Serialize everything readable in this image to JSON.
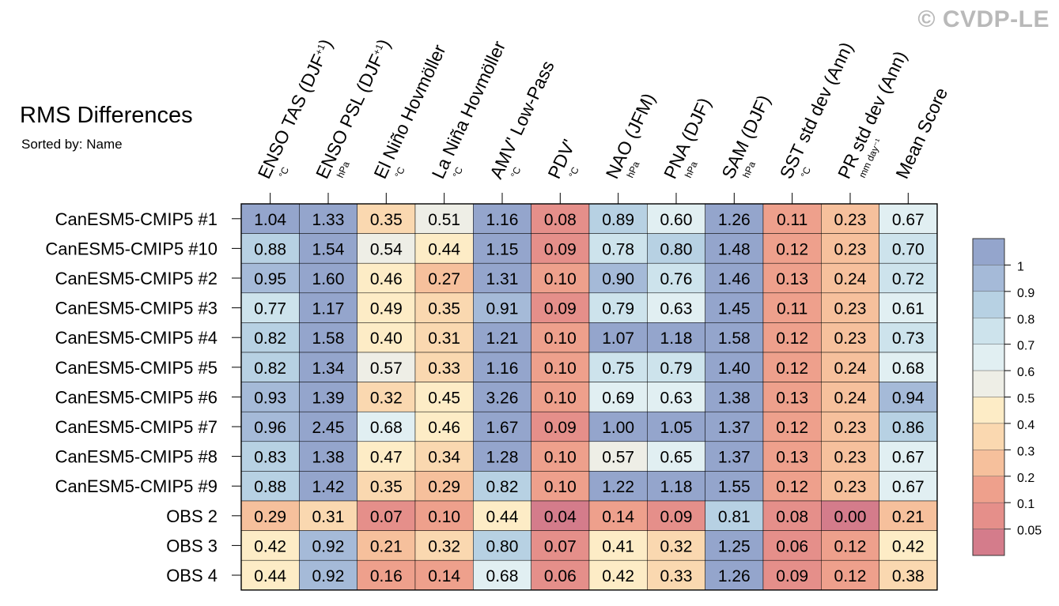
{
  "watermark": "© CVDP-LE",
  "title": "RMS Differences",
  "subtitle": "Sorted by: Name",
  "chart_data": {
    "type": "heatmap",
    "title": "RMS Differences",
    "subtitle": "Sorted by: Name",
    "columns": [
      {
        "label": "ENSO TAS (DJF",
        "sup": "+1",
        "close": ")",
        "unit": "°C"
      },
      {
        "label": "ENSO PSL (DJF",
        "sup": "+1",
        "close": ")",
        "unit": "hPa"
      },
      {
        "label": "El Niño Hovmöller",
        "sup": "",
        "close": "",
        "unit": "°C"
      },
      {
        "label": "La Niña Hovmöller",
        "sup": "",
        "close": "",
        "unit": "°C"
      },
      {
        "label": "AMV' Low-Pass",
        "sup": "",
        "close": "",
        "unit": "°C"
      },
      {
        "label": "PDV'",
        "sup": "",
        "close": "",
        "unit": "°C"
      },
      {
        "label": "NAO (JFM)",
        "sup": "",
        "close": "",
        "unit": "hPa"
      },
      {
        "label": "PNA (DJF)",
        "sup": "",
        "close": "",
        "unit": "hPa"
      },
      {
        "label": "SAM (DJF)",
        "sup": "",
        "close": "",
        "unit": "hPa"
      },
      {
        "label": "SST std dev (Ann)",
        "sup": "",
        "close": "",
        "unit": "°C"
      },
      {
        "label": "PR std dev (Ann)",
        "sup": "",
        "close": "",
        "unit": "mm day⁻¹"
      },
      {
        "label": "Mean Score",
        "sup": "",
        "close": "",
        "unit": ""
      }
    ],
    "rows": [
      "CanESM5-CMIP5 #1",
      "CanESM5-CMIP5 #10",
      "CanESM5-CMIP5 #2",
      "CanESM5-CMIP5 #3",
      "CanESM5-CMIP5 #4",
      "CanESM5-CMIP5 #5",
      "CanESM5-CMIP5 #6",
      "CanESM5-CMIP5 #7",
      "CanESM5-CMIP5 #8",
      "CanESM5-CMIP5 #9",
      "OBS 2",
      "OBS 3",
      "OBS 4"
    ],
    "values": [
      [
        "1.04",
        "1.33",
        "0.35",
        "0.51",
        "1.16",
        "0.08",
        "0.89",
        "0.60",
        "1.26",
        "0.11",
        "0.23",
        "0.67"
      ],
      [
        "0.88",
        "1.54",
        "0.54",
        "0.44",
        "1.15",
        "0.09",
        "0.78",
        "0.80",
        "1.48",
        "0.12",
        "0.23",
        "0.70"
      ],
      [
        "0.95",
        "1.60",
        "0.46",
        "0.27",
        "1.31",
        "0.10",
        "0.90",
        "0.76",
        "1.46",
        "0.13",
        "0.24",
        "0.72"
      ],
      [
        "0.77",
        "1.17",
        "0.49",
        "0.35",
        "0.91",
        "0.09",
        "0.79",
        "0.63",
        "1.45",
        "0.11",
        "0.23",
        "0.61"
      ],
      [
        "0.82",
        "1.58",
        "0.40",
        "0.31",
        "1.21",
        "0.10",
        "1.07",
        "1.18",
        "1.58",
        "0.12",
        "0.23",
        "0.73"
      ],
      [
        "0.82",
        "1.34",
        "0.57",
        "0.33",
        "1.16",
        "0.10",
        "0.75",
        "0.79",
        "1.40",
        "0.12",
        "0.24",
        "0.68"
      ],
      [
        "0.93",
        "1.39",
        "0.32",
        "0.45",
        "3.26",
        "0.10",
        "0.69",
        "0.63",
        "1.38",
        "0.13",
        "0.24",
        "0.94"
      ],
      [
        "0.96",
        "2.45",
        "0.68",
        "0.46",
        "1.67",
        "0.09",
        "1.00",
        "1.05",
        "1.37",
        "0.12",
        "0.23",
        "0.86"
      ],
      [
        "0.83",
        "1.38",
        "0.47",
        "0.34",
        "1.28",
        "0.10",
        "0.57",
        "0.65",
        "1.37",
        "0.13",
        "0.23",
        "0.67"
      ],
      [
        "0.88",
        "1.42",
        "0.35",
        "0.29",
        "0.82",
        "0.10",
        "1.22",
        "1.18",
        "1.55",
        "0.12",
        "0.23",
        "0.67"
      ],
      [
        "0.29",
        "0.31",
        "0.07",
        "0.10",
        "0.44",
        "0.04",
        "0.14",
        "0.09",
        "0.81",
        "0.08",
        "0.00",
        "0.21"
      ],
      [
        "0.42",
        "0.92",
        "0.21",
        "0.32",
        "0.80",
        "0.07",
        "0.41",
        "0.32",
        "1.25",
        "0.06",
        "0.12",
        "0.42"
      ],
      [
        "0.44",
        "0.92",
        "0.16",
        "0.14",
        "0.68",
        "0.06",
        "0.42",
        "0.33",
        "1.26",
        "0.09",
        "0.12",
        "0.38"
      ]
    ],
    "colorbar": {
      "labels": [
        "1",
        "0.9",
        "0.8",
        "0.7",
        "0.6",
        "0.5",
        "0.4",
        "0.3",
        "0.2",
        "0.1",
        "0.05"
      ],
      "thresholds": [
        1,
        0.9,
        0.8,
        0.7,
        0.6,
        0.5,
        0.4,
        0.3,
        0.2,
        0.1,
        0.05
      ],
      "colors": [
        "#94a5cc",
        "#a5bad8",
        "#b7d1e3",
        "#cde3ec",
        "#e1eff2",
        "#eeeee6",
        "#fdecc6",
        "#fad8b0",
        "#f6c09c",
        "#eea08c",
        "#e58f8a",
        "#d47c8b"
      ]
    }
  }
}
